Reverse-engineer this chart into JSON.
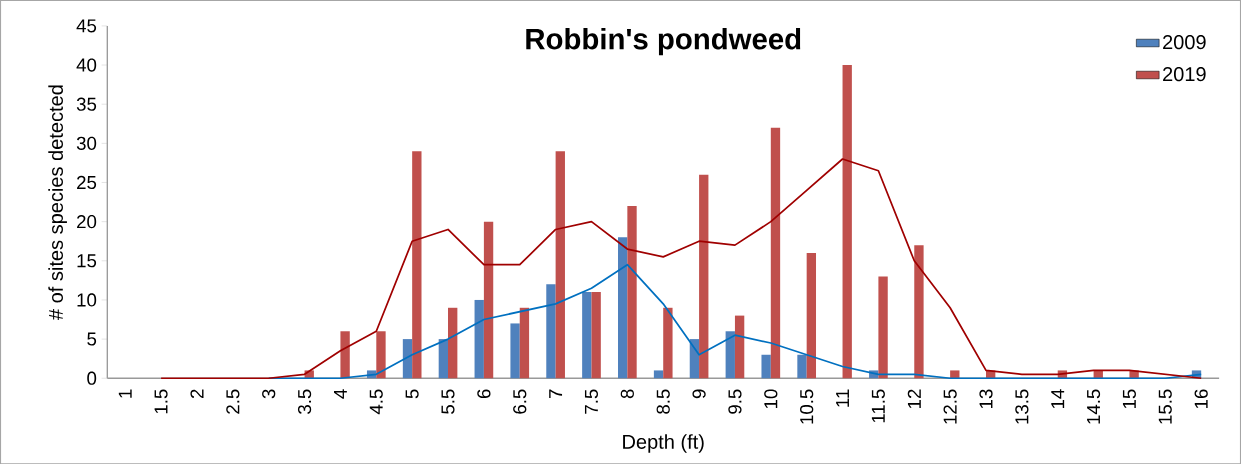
{
  "chart_data": {
    "type": "bar",
    "title": "Robbin's pondweed",
    "xlabel": "Depth (ft)",
    "ylabel": "# of sites species detected",
    "categories": [
      "1",
      "1.5",
      "2",
      "2.5",
      "3",
      "3.5",
      "4",
      "4.5",
      "5",
      "5.5",
      "6",
      "6.5",
      "7",
      "7.5",
      "8",
      "8.5",
      "9",
      "9.5",
      "10",
      "10.5",
      "11",
      "11.5",
      "12",
      "12.5",
      "13",
      "13.5",
      "14",
      "14.5",
      "15",
      "15.5",
      "16"
    ],
    "series": [
      {
        "name": "2009",
        "color": "#4f81bd",
        "values": [
          0,
          0,
          0,
          0,
          0,
          0,
          0,
          1,
          5,
          5,
          10,
          7,
          12,
          11,
          18,
          1,
          5,
          6,
          3,
          3,
          0,
          1,
          0,
          0,
          0,
          0,
          0,
          0,
          0,
          0,
          1
        ]
      },
      {
        "name": "2019",
        "color": "#c0504d",
        "values": [
          0,
          0,
          0,
          0,
          0,
          1,
          6,
          6,
          29,
          9,
          20,
          9,
          29,
          11,
          22,
          9,
          26,
          8,
          32,
          16,
          40,
          13,
          17,
          1,
          1,
          0,
          1,
          1,
          1,
          0,
          0
        ]
      },
      {
        "type": "line",
        "color": "#0070c0",
        "values": [
          null,
          null,
          null,
          null,
          0,
          0,
          0,
          0.5,
          3,
          5,
          7.5,
          8.5,
          9.5,
          11.5,
          14.5,
          9.5,
          3,
          5.5,
          4.5,
          3,
          1.5,
          0.5,
          0.5,
          0,
          0,
          0,
          0,
          0,
          0,
          0,
          0.5
        ]
      },
      {
        "type": "line",
        "color": "#a00000",
        "values": [
          null,
          0,
          0,
          0,
          0,
          0.5,
          3.5,
          6,
          17.5,
          19,
          14.5,
          14.5,
          19,
          20,
          16.5,
          15.5,
          17.5,
          17,
          20,
          24,
          28,
          26.5,
          15,
          9,
          1,
          0.5,
          0.5,
          1,
          1,
          0.5,
          0
        ]
      }
    ],
    "ylim": [
      0,
      45
    ],
    "yticks": [
      0,
      5,
      10,
      15,
      20,
      25,
      30,
      35,
      40,
      45
    ],
    "legend": "top right",
    "line_style": "solid"
  }
}
